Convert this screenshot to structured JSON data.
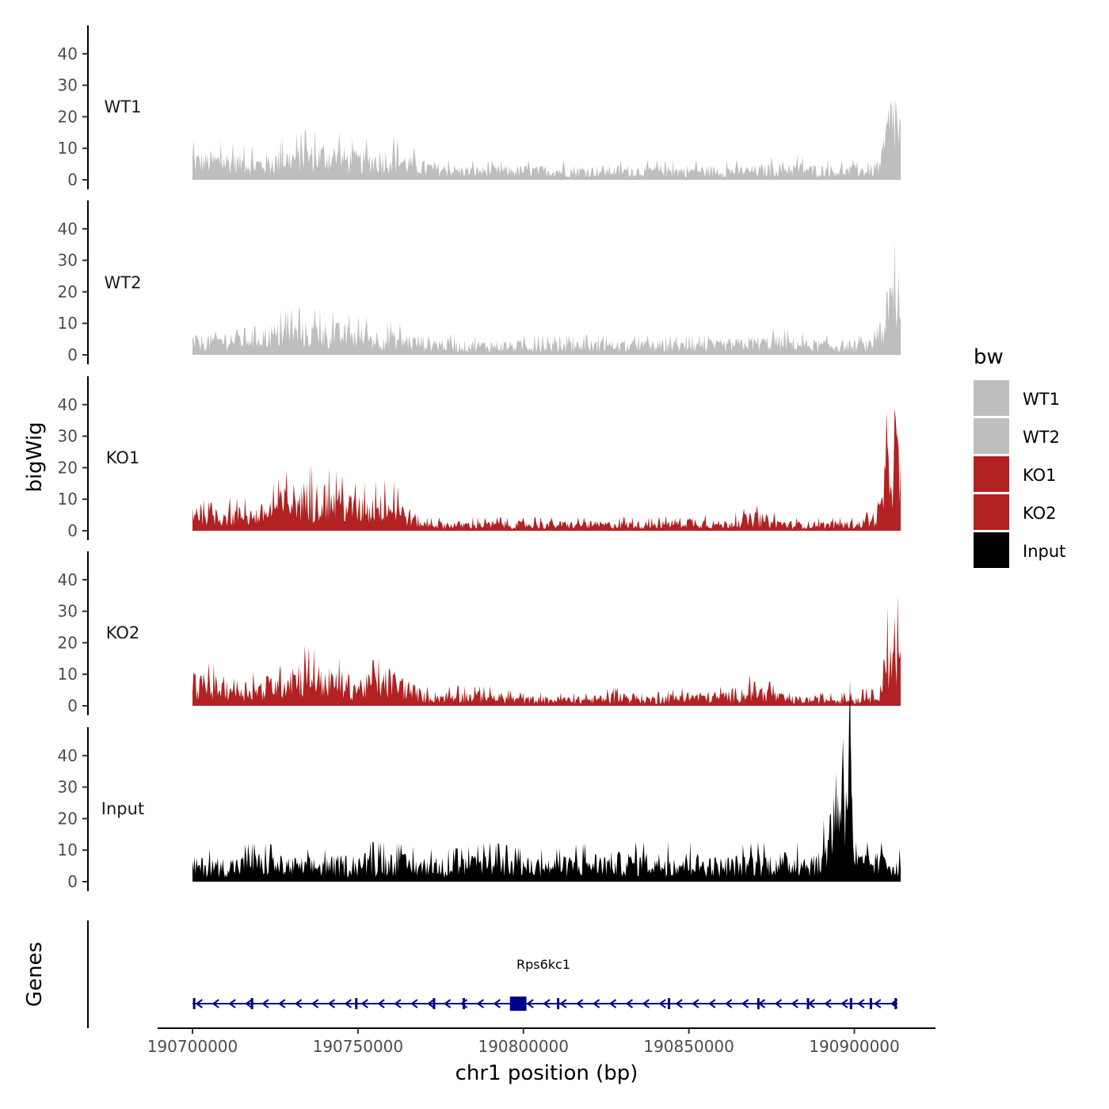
{
  "chart_data": {
    "type": "area",
    "ylabel": "bigWig",
    "xlabel": "chr1 position (bp)",
    "genes_label": "Genes",
    "xlim": [
      190690000,
      190925000
    ],
    "x_range_data": [
      190700000,
      190914000
    ],
    "x_ticks": [
      190700000,
      190750000,
      190800000,
      190850000,
      190900000
    ],
    "x_tick_labels": [
      "190700000",
      "190750000",
      "190800000",
      "190850000",
      "190900000"
    ],
    "ylim": [
      0,
      48
    ],
    "y_ticks": [
      0,
      10,
      20,
      30,
      40
    ],
    "y_tick_labels": [
      "0",
      "10",
      "20",
      "30",
      "40"
    ],
    "legend": {
      "title": "bw",
      "position": "right",
      "entries": [
        {
          "label": "WT1",
          "color": "#BEBEBE"
        },
        {
          "label": "WT2",
          "color": "#BEBEBE"
        },
        {
          "label": "KO1",
          "color": "#B22222"
        },
        {
          "label": "KO2",
          "color": "#B22222"
        },
        {
          "label": "Input",
          "color": "#000000"
        }
      ]
    },
    "series": [
      {
        "name": "WT1",
        "color": "#BEBEBE",
        "x": [
          190700000,
          190710000,
          190720000,
          190730000,
          190740000,
          190750000,
          190760000,
          190770000,
          190780000,
          190790000,
          190800000,
          190810000,
          190820000,
          190830000,
          190840000,
          190850000,
          190860000,
          190870000,
          190880000,
          190890000,
          190900000,
          190905000,
          190908000,
          190910000,
          190912000,
          190914000
        ],
        "values": [
          6,
          6,
          5,
          7,
          8,
          6,
          7,
          4,
          3,
          3,
          3,
          3,
          3,
          3,
          3,
          3,
          3,
          3,
          4,
          3,
          3,
          3,
          5,
          15,
          22,
          14
        ]
      },
      {
        "name": "WT2",
        "color": "#BEBEBE",
        "x": [
          190700000,
          190710000,
          190720000,
          190730000,
          190740000,
          190750000,
          190760000,
          190770000,
          190780000,
          190790000,
          190800000,
          190810000,
          190820000,
          190830000,
          190840000,
          190850000,
          190860000,
          190870000,
          190880000,
          190890000,
          190900000,
          190905000,
          190908000,
          190910000,
          190912000,
          190914000
        ],
        "values": [
          4,
          5,
          6,
          7,
          7,
          6,
          5,
          4,
          3,
          3,
          3,
          3,
          3,
          3,
          3,
          3,
          3,
          4,
          4,
          3,
          3,
          3,
          5,
          14,
          18,
          10
        ]
      },
      {
        "name": "KO1",
        "color": "#B22222",
        "x": [
          190700000,
          190710000,
          190720000,
          190730000,
          190740000,
          190750000,
          190760000,
          190770000,
          190780000,
          190790000,
          190800000,
          190810000,
          190820000,
          190830000,
          190840000,
          190850000,
          190860000,
          190870000,
          190880000,
          190890000,
          190900000,
          190905000,
          190908000,
          190910000,
          190912000,
          190914000
        ],
        "values": [
          7,
          5,
          5,
          10,
          10,
          7,
          8,
          2,
          2,
          2,
          2,
          2,
          2,
          2,
          2,
          3,
          2,
          4,
          2,
          2,
          2,
          3,
          7,
          20,
          28,
          16
        ]
      },
      {
        "name": "KO2",
        "color": "#B22222",
        "x": [
          190700000,
          190710000,
          190720000,
          190730000,
          190740000,
          190750000,
          190760000,
          190770000,
          190780000,
          190790000,
          190800000,
          190810000,
          190820000,
          190830000,
          190840000,
          190850000,
          190860000,
          190870000,
          190880000,
          190890000,
          190900000,
          190905000,
          190908000,
          190910000,
          190912000,
          190914000
        ],
        "values": [
          7,
          6,
          5,
          10,
          8,
          6,
          8,
          3,
          3,
          3,
          2,
          2,
          2,
          3,
          2,
          3,
          3,
          5,
          2,
          2,
          2,
          3,
          6,
          15,
          20,
          14
        ]
      },
      {
        "name": "Input",
        "color": "#000000",
        "x": [
          190700000,
          190710000,
          190720000,
          190730000,
          190740000,
          190750000,
          190760000,
          190770000,
          190780000,
          190790000,
          190800000,
          190810000,
          190820000,
          190830000,
          190840000,
          190850000,
          190860000,
          190870000,
          190880000,
          190890000,
          190899000,
          190900000,
          190905000,
          190910000,
          190914000
        ],
        "values": [
          5,
          5,
          6,
          5,
          5,
          6,
          6,
          5,
          5,
          6,
          5,
          5,
          6,
          6,
          6,
          6,
          5,
          6,
          6,
          6,
          45,
          6,
          6,
          6,
          5
        ]
      }
    ],
    "gene": {
      "name": "Rps6kc1",
      "strand": "-",
      "color": "#00008B",
      "start": 190700000,
      "end": 190913000,
      "exons": [
        190700500,
        190718000,
        190749500,
        190773000,
        190782000,
        190797000,
        190799000,
        190810500,
        190844000,
        190871000,
        190886000,
        190899000,
        190905000,
        190912500
      ]
    }
  }
}
